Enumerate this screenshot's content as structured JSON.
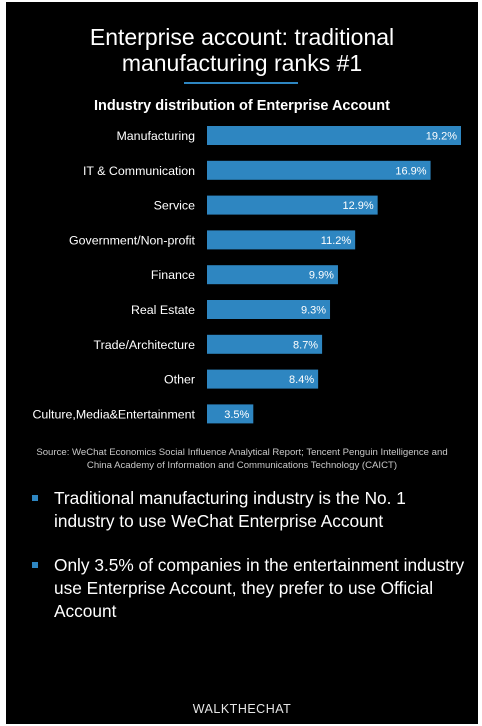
{
  "header": {
    "title_line1": "Enterprise account: traditional",
    "title_line2": "manufacturing ranks #1",
    "accent_color": "#2e86c1"
  },
  "chart_data": {
    "type": "bar",
    "orientation": "horizontal",
    "title": "Industry distribution of Enterprise Account",
    "categories": [
      "Manufacturing",
      "IT & Communication",
      "Service",
      "Government/Non-profit",
      "Finance",
      "Real Estate",
      "Trade/Architecture",
      "Other",
      "Culture,Media&Entertainment"
    ],
    "values": [
      19.2,
      16.9,
      12.9,
      11.2,
      9.9,
      9.3,
      8.7,
      8.4,
      3.5
    ],
    "value_labels": [
      "19.2%",
      "16.9%",
      "12.9%",
      "11.2%",
      "9.9%",
      "9.3%",
      "8.7%",
      "8.4%",
      "3.5%"
    ],
    "unit": "%",
    "xlim": [
      0,
      19.2
    ],
    "grid": false,
    "legend": false,
    "bar_color": "#2e86c1"
  },
  "source": {
    "line1": "Source: WeChat Economics Social Influence Analytical Report; Tencent Penguin Intelligence and",
    "line2": "China Academy of Information and Communications Technology (CAICT)"
  },
  "bullets": [
    "Traditional manufacturing industry is the No. 1 industry to use WeChat Enterprise Account",
    "Only 3.5% of companies in the entertainment industry use Enterprise Account, they prefer to use Official Account"
  ],
  "brand": "WALKTHECHAT"
}
